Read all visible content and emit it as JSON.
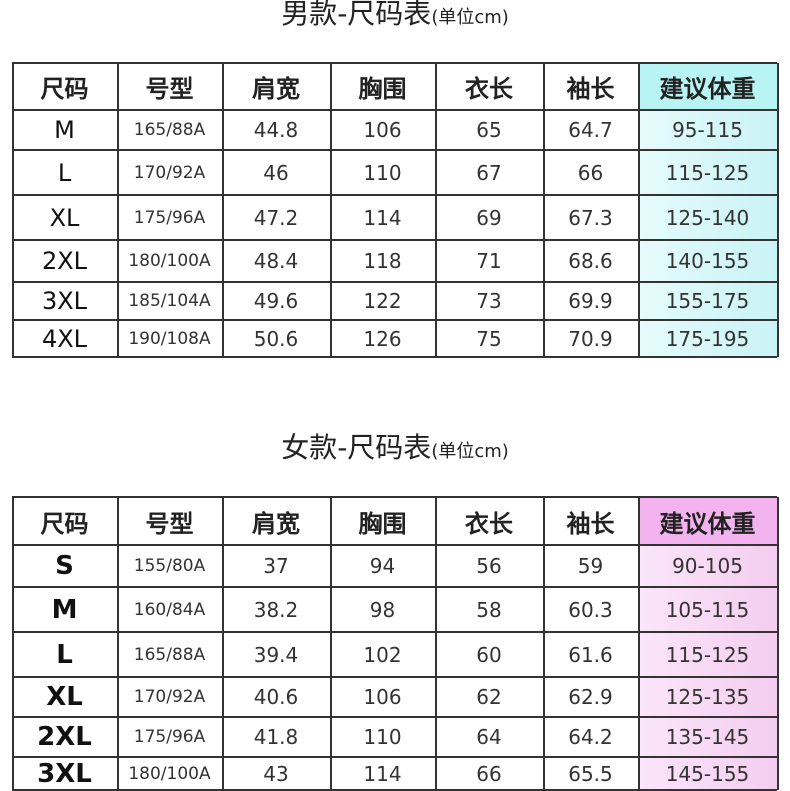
{
  "tables": [
    {
      "title": "男款-尺码表",
      "unit": "(单位cm)",
      "header": [
        "尺码",
        "号型",
        "肩宽",
        "胸围",
        "衣长",
        "袖长",
        "建议体重"
      ],
      "rows": [
        [
          "M",
          "165/88A",
          "44.8",
          "106",
          "65",
          "64.7",
          "95-115"
        ],
        [
          "L",
          "170/92A",
          "46",
          "110",
          "67",
          "66",
          "115-125"
        ],
        [
          "XL",
          "175/96A",
          "47.2",
          "114",
          "69",
          "67.3",
          "125-140"
        ],
        [
          "2XL",
          "180/100A",
          "48.4",
          "118",
          "71",
          "68.6",
          "140-155"
        ],
        [
          "3XL",
          "185/104A",
          "49.6",
          "122",
          "73",
          "69.9",
          "155-175"
        ],
        [
          "4XL",
          "190/108A",
          "50.6",
          "126",
          "75",
          "70.9",
          "175-195"
        ]
      ]
    },
    {
      "title": "女款-尺码表",
      "unit": "(单位cm)",
      "header": [
        "尺码",
        "号型",
        "肩宽",
        "胸围",
        "衣长",
        "袖长",
        "建议体重"
      ],
      "rows": [
        [
          "S",
          "155/80A",
          "37",
          "94",
          "56",
          "59",
          "90-105"
        ],
        [
          "M",
          "160/84A",
          "38.2",
          "98",
          "58",
          "60.3",
          "105-115"
        ],
        [
          "L",
          "165/88A",
          "39.4",
          "102",
          "60",
          "61.6",
          "115-125"
        ],
        [
          "XL",
          "170/92A",
          "40.6",
          "106",
          "62",
          "62.9",
          "125-135"
        ],
        [
          "2XL",
          "175/96A",
          "41.8",
          "110",
          "64",
          "64.2",
          "135-145"
        ],
        [
          "3XL",
          "180/100A",
          "43",
          "114",
          "66",
          "65.5",
          "145-155"
        ]
      ]
    }
  ]
}
